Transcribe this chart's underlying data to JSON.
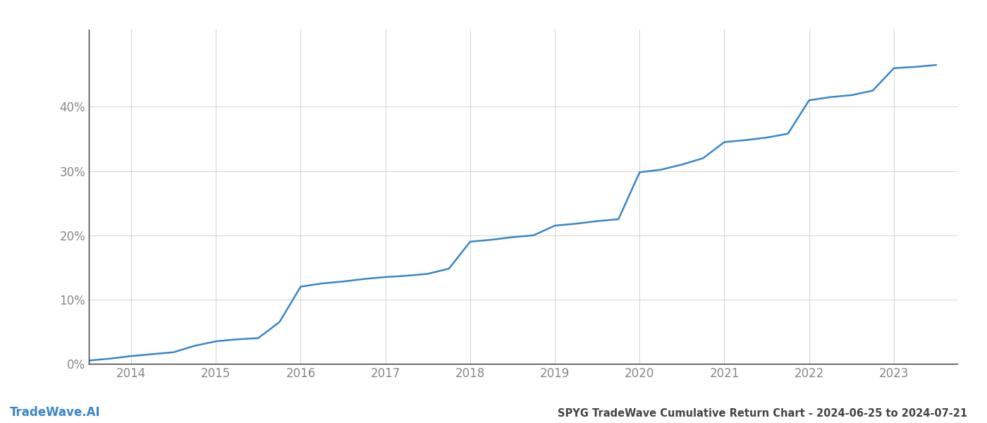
{
  "title": "SPYG TradeWave Cumulative Return Chart - 2024-06-25 to 2024-07-21",
  "watermark": "TradeWave.AI",
  "line_color": "#3a86c8",
  "background_color": "#ffffff",
  "grid_color": "#cccccc",
  "text_color": "#888888",
  "spine_color": "#333333",
  "x_years": [
    2014,
    2015,
    2016,
    2017,
    2018,
    2019,
    2020,
    2021,
    2022,
    2023
  ],
  "x_values": [
    2013.5,
    2013.75,
    2014.0,
    2014.25,
    2014.5,
    2014.75,
    2015.0,
    2015.25,
    2015.5,
    2015.75,
    2016.0,
    2016.1,
    2016.25,
    2016.5,
    2016.75,
    2017.0,
    2017.25,
    2017.5,
    2017.75,
    2018.0,
    2018.25,
    2018.5,
    2018.75,
    2019.0,
    2019.25,
    2019.5,
    2019.75,
    2020.0,
    2020.25,
    2020.5,
    2020.75,
    2021.0,
    2021.25,
    2021.5,
    2021.75,
    2022.0,
    2022.25,
    2022.5,
    2022.75,
    2023.0,
    2023.25,
    2023.5
  ],
  "y_values": [
    0.005,
    0.008,
    0.012,
    0.015,
    0.018,
    0.028,
    0.035,
    0.038,
    0.04,
    0.065,
    0.12,
    0.122,
    0.125,
    0.128,
    0.132,
    0.135,
    0.137,
    0.14,
    0.148,
    0.19,
    0.193,
    0.197,
    0.2,
    0.215,
    0.218,
    0.222,
    0.225,
    0.298,
    0.302,
    0.31,
    0.32,
    0.345,
    0.348,
    0.352,
    0.358,
    0.41,
    0.415,
    0.418,
    0.425,
    0.46,
    0.462,
    0.465
  ],
  "ylim": [
    0.0,
    0.52
  ],
  "yticks": [
    0.0,
    0.1,
    0.2,
    0.3,
    0.4
  ],
  "xlim": [
    2013.5,
    2023.75
  ],
  "line_width": 1.8,
  "title_fontsize": 10.5,
  "tick_fontsize": 12,
  "watermark_fontsize": 12
}
